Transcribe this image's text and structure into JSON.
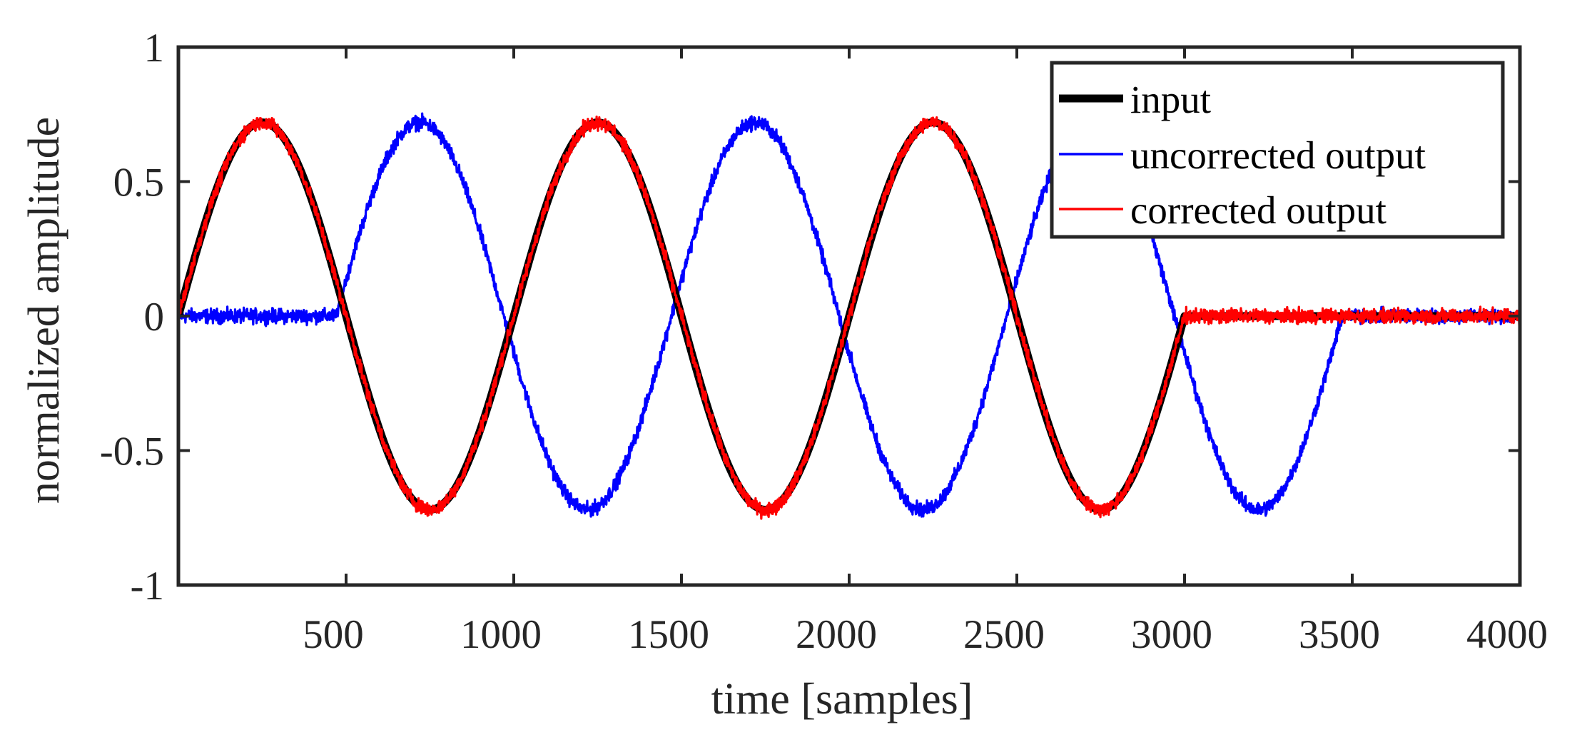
{
  "chart_data": {
    "type": "line",
    "title": "",
    "xlabel": "time [samples]",
    "ylabel": "normalized amplitude",
    "xlim": [
      0,
      4000
    ],
    "ylim": [
      -1,
      1
    ],
    "xticks": [
      500,
      1000,
      1500,
      2000,
      2500,
      3000,
      3500,
      4000
    ],
    "xtick_labels": [
      "500",
      "1000",
      "1500",
      "2000",
      "2500",
      "3000",
      "3500",
      "4000"
    ],
    "yticks": [
      1,
      0.5,
      0,
      -0.5,
      -1
    ],
    "ytick_labels": [
      "1",
      "0.5",
      "0",
      "-0.5",
      "-1"
    ],
    "grid": false,
    "legend_position": "top-right",
    "series": [
      {
        "name": "input",
        "color": "#000000",
        "style": "thick",
        "signal": {
          "kind": "sine",
          "amplitude": 0.72,
          "period": 1000,
          "start": 0,
          "end": 3000,
          "delay": 0,
          "noise": 0.0
        },
        "approx_points": [
          [
            0,
            0
          ],
          [
            250,
            0.72
          ],
          [
            500,
            0
          ],
          [
            750,
            -0.72
          ],
          [
            1000,
            0
          ],
          [
            1250,
            0.72
          ],
          [
            1500,
            0
          ],
          [
            1750,
            -0.72
          ],
          [
            2000,
            0
          ],
          [
            2250,
            0.72
          ],
          [
            2500,
            0
          ],
          [
            2750,
            -0.72
          ],
          [
            3000,
            0
          ],
          [
            4000,
            0
          ]
        ]
      },
      {
        "name": "uncorrected output",
        "color": "#0000ff",
        "style": "thin",
        "signal": {
          "kind": "sine",
          "amplitude": 0.72,
          "period": 1000,
          "start": 470,
          "end": 3470,
          "delay": 470,
          "noise": 0.02
        },
        "approx_points": [
          [
            0,
            0
          ],
          [
            470,
            0
          ],
          [
            720,
            0.72
          ],
          [
            970,
            0
          ],
          [
            1220,
            -0.72
          ],
          [
            1470,
            0
          ],
          [
            1720,
            0.72
          ],
          [
            1970,
            0
          ],
          [
            2220,
            -0.72
          ],
          [
            2470,
            0
          ],
          [
            2720,
            0.72
          ],
          [
            2970,
            0
          ],
          [
            3220,
            -0.72
          ],
          [
            3470,
            0
          ],
          [
            4000,
            0
          ]
        ]
      },
      {
        "name": "corrected output",
        "color": "#ff0000",
        "style": "thin",
        "signal": {
          "kind": "sine",
          "amplitude": 0.72,
          "period": 1000,
          "start": 0,
          "end": 3000,
          "delay": 0,
          "noise": 0.02
        },
        "approx_points": [
          [
            0,
            0
          ],
          [
            250,
            0.72
          ],
          [
            500,
            0
          ],
          [
            750,
            -0.72
          ],
          [
            1000,
            0
          ],
          [
            1250,
            0.72
          ],
          [
            1500,
            0
          ],
          [
            1750,
            -0.72
          ],
          [
            2000,
            0
          ],
          [
            2250,
            0.72
          ],
          [
            2500,
            0
          ],
          [
            2750,
            -0.72
          ],
          [
            3000,
            0
          ],
          [
            4000,
            0
          ]
        ]
      }
    ]
  }
}
